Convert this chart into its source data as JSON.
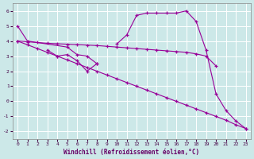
{
  "xlabel": "Windchill (Refroidissement éolien,°C)",
  "background_color": "#cce8e8",
  "grid_color": "#ffffff",
  "line_color": "#990099",
  "xlim": [
    -0.5,
    23.5
  ],
  "ylim": [
    -2.5,
    6.5
  ],
  "xticks": [
    0,
    1,
    2,
    3,
    4,
    5,
    6,
    7,
    8,
    9,
    10,
    11,
    12,
    13,
    14,
    15,
    16,
    17,
    18,
    19,
    20,
    21,
    22,
    23
  ],
  "yticks": [
    -2,
    -1,
    0,
    1,
    2,
    3,
    4,
    5,
    6
  ],
  "line1_x": [
    0,
    1,
    5,
    6,
    7,
    8
  ],
  "line1_y": [
    5.0,
    4.0,
    3.6,
    3.1,
    3.0,
    2.5
  ],
  "line2_x": [
    3,
    4,
    5,
    6,
    7,
    8
  ],
  "line2_y": [
    3.4,
    3.0,
    3.1,
    2.7,
    2.0,
    2.5
  ],
  "line3_x": [
    0,
    1,
    2,
    3,
    4,
    5,
    6,
    7,
    8,
    9,
    10,
    11,
    12,
    13,
    14,
    15,
    16,
    17,
    18,
    19,
    20
  ],
  "line3_y": [
    4.0,
    3.95,
    3.9,
    3.85,
    3.82,
    3.79,
    3.76,
    3.73,
    3.7,
    3.65,
    3.6,
    3.55,
    3.5,
    3.45,
    3.4,
    3.35,
    3.3,
    3.25,
    3.15,
    3.0,
    2.35
  ],
  "line4_x": [
    0,
    1,
    2,
    3,
    4,
    5,
    6,
    7,
    8,
    9,
    10,
    11,
    12,
    13,
    14,
    15,
    16,
    17,
    18,
    19,
    20,
    21,
    22,
    23
  ],
  "line4_y": [
    4.0,
    3.75,
    3.5,
    3.25,
    3.0,
    2.75,
    2.5,
    2.25,
    2.0,
    1.75,
    1.5,
    1.25,
    1.0,
    0.75,
    0.5,
    0.25,
    0.0,
    -0.25,
    -0.5,
    -0.75,
    -1.0,
    -1.25,
    -1.55,
    -1.8
  ],
  "line5_x": [
    10,
    11,
    12,
    13,
    14,
    15,
    16,
    17,
    18,
    19,
    20,
    21,
    22,
    23
  ],
  "line5_y": [
    3.8,
    4.4,
    5.7,
    5.85,
    5.85,
    5.85,
    5.85,
    6.0,
    5.3,
    3.4,
    0.5,
    -0.6,
    -1.3,
    -1.8
  ]
}
